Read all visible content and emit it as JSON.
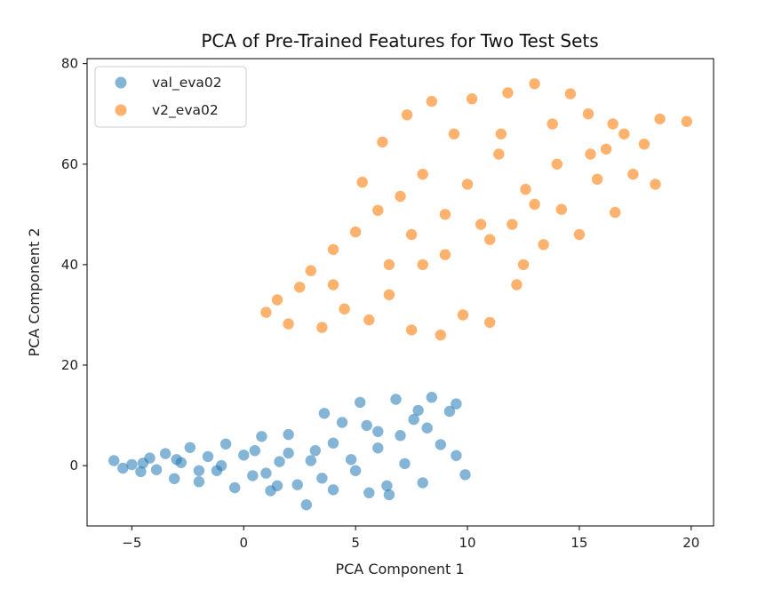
{
  "chart_data": {
    "type": "scatter",
    "title": "PCA of Pre-Trained Features for Two Test Sets",
    "xlabel": "PCA Component 1",
    "ylabel": "PCA Component 2",
    "xlim": [
      -7,
      21
    ],
    "ylim": [
      -12,
      81
    ],
    "xticks": [
      -5,
      0,
      5,
      10,
      15,
      20
    ],
    "yticks": [
      0,
      20,
      40,
      60,
      80
    ],
    "grid": false,
    "legend_position": "top-left",
    "series": [
      {
        "name": "val_eva02",
        "color": "#1f77b4",
        "alpha": 0.55,
        "points": [
          [
            -5.8,
            1.0
          ],
          [
            -5.4,
            -0.5
          ],
          [
            -5.0,
            0.2
          ],
          [
            -4.6,
            -1.2
          ],
          [
            -4.2,
            1.5
          ],
          [
            -3.9,
            -0.8
          ],
          [
            -3.5,
            2.4
          ],
          [
            -3.1,
            -2.6
          ],
          [
            -2.8,
            0.6
          ],
          [
            -2.4,
            3.6
          ],
          [
            -2.0,
            -3.2
          ],
          [
            -1.6,
            1.8
          ],
          [
            -1.2,
            -1.0
          ],
          [
            -0.8,
            4.3
          ],
          [
            -0.4,
            -4.4
          ],
          [
            0.0,
            2.1
          ],
          [
            0.4,
            -2.0
          ],
          [
            0.8,
            5.8
          ],
          [
            1.2,
            -5.0
          ],
          [
            1.6,
            0.8
          ],
          [
            2.0,
            6.2
          ],
          [
            2.4,
            -3.8
          ],
          [
            2.8,
            -7.8
          ],
          [
            3.2,
            3.0
          ],
          [
            3.6,
            10.4
          ],
          [
            4.0,
            -4.8
          ],
          [
            4.4,
            8.6
          ],
          [
            4.8,
            1.2
          ],
          [
            5.2,
            12.6
          ],
          [
            5.6,
            -5.4
          ],
          [
            6.0,
            6.8
          ],
          [
            6.4,
            -4.0
          ],
          [
            6.8,
            13.2
          ],
          [
            7.2,
            0.4
          ],
          [
            7.6,
            9.2
          ],
          [
            8.0,
            -3.4
          ],
          [
            8.4,
            13.6
          ],
          [
            8.8,
            4.2
          ],
          [
            9.2,
            10.8
          ],
          [
            9.5,
            2.0
          ],
          [
            9.9,
            -1.8
          ],
          [
            9.5,
            12.3
          ],
          [
            -3.0,
            1.2
          ],
          [
            -1.0,
            0.0
          ],
          [
            1.0,
            -1.5
          ],
          [
            3.0,
            1.0
          ],
          [
            5.0,
            -1.0
          ],
          [
            2.0,
            2.5
          ],
          [
            4.0,
            4.5
          ],
          [
            6.0,
            3.5
          ],
          [
            7.0,
            6.0
          ],
          [
            -2.0,
            -1.0
          ],
          [
            0.5,
            3.0
          ],
          [
            3.5,
            -2.5
          ],
          [
            5.5,
            8.0
          ],
          [
            7.8,
            11.0
          ],
          [
            8.2,
            7.5
          ],
          [
            6.5,
            -5.8
          ],
          [
            -4.5,
            0.5
          ],
          [
            1.5,
            -4.0
          ]
        ]
      },
      {
        "name": "v2_eva02",
        "color": "#ff7f0e",
        "alpha": 0.6,
        "points": [
          [
            1.0,
            30.5
          ],
          [
            1.5,
            33.0
          ],
          [
            2.0,
            28.2
          ],
          [
            2.5,
            35.5
          ],
          [
            3.0,
            38.8
          ],
          [
            3.5,
            27.5
          ],
          [
            4.0,
            43.0
          ],
          [
            4.5,
            31.2
          ],
          [
            5.0,
            46.5
          ],
          [
            5.3,
            56.4
          ],
          [
            5.6,
            29.0
          ],
          [
            6.0,
            50.8
          ],
          [
            6.2,
            64.4
          ],
          [
            6.5,
            34.0
          ],
          [
            7.0,
            53.6
          ],
          [
            7.3,
            69.8
          ],
          [
            7.5,
            27.0
          ],
          [
            8.0,
            58.0
          ],
          [
            8.4,
            72.5
          ],
          [
            8.8,
            26.0
          ],
          [
            9.0,
            42.0
          ],
          [
            9.4,
            66.0
          ],
          [
            9.8,
            30.0
          ],
          [
            10.2,
            73.0
          ],
          [
            10.6,
            48.0
          ],
          [
            11.0,
            28.5
          ],
          [
            11.4,
            62.0
          ],
          [
            11.8,
            74.2
          ],
          [
            12.2,
            36.0
          ],
          [
            12.6,
            55.0
          ],
          [
            13.0,
            76.0
          ],
          [
            13.4,
            44.0
          ],
          [
            13.8,
            68.0
          ],
          [
            14.2,
            51.0
          ],
          [
            14.6,
            74.0
          ],
          [
            15.0,
            46.0
          ],
          [
            15.4,
            70.0
          ],
          [
            15.8,
            57.0
          ],
          [
            16.2,
            63.0
          ],
          [
            16.6,
            50.4
          ],
          [
            17.0,
            66.0
          ],
          [
            17.4,
            58.0
          ],
          [
            17.9,
            64.0
          ],
          [
            18.4,
            56.0
          ],
          [
            18.6,
            69.0
          ],
          [
            19.8,
            68.5
          ],
          [
            11.0,
            45.0
          ],
          [
            9.0,
            50.0
          ],
          [
            12.0,
            48.0
          ],
          [
            8.0,
            40.0
          ],
          [
            10.0,
            56.0
          ],
          [
            14.0,
            60.0
          ],
          [
            6.5,
            40.0
          ],
          [
            13.0,
            52.0
          ],
          [
            11.5,
            66.0
          ],
          [
            4.0,
            36.0
          ],
          [
            15.5,
            62.0
          ],
          [
            7.5,
            46.0
          ],
          [
            12.5,
            40.0
          ],
          [
            16.5,
            68.0
          ]
        ]
      }
    ]
  }
}
